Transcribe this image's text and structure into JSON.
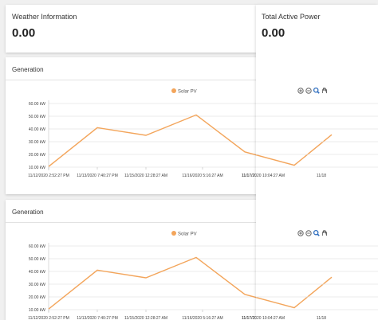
{
  "widgets": {
    "weather": {
      "title": "Weather Information",
      "value": "0.00"
    },
    "active_power": {
      "title": "Total Active Power",
      "value": "0.00"
    }
  },
  "panels": [
    {
      "title": "Generation",
      "toolbar": [
        "zoom-in-icon",
        "zoom-out-icon",
        "magnify-icon",
        "pan-hand-icon"
      ],
      "chart_data": {
        "type": "line",
        "title": "",
        "series": [
          {
            "name": "Solar PV",
            "color": "#f3a55b",
            "values": [
              10.5,
              41.0,
              35.0,
              51.0,
              22.0,
              11.5,
              35.5
            ]
          }
        ],
        "x_tick_labels": [
          "11/12/2020 2:52:27 PM",
          "11/13/2020 7:40:27 PM",
          "11/15/2020 12:28:27 AM",
          "11/16/2020 5:16:27 AM",
          "11/17/2020 10:04:27 AM",
          "11/18"
        ],
        "y_tick_labels": [
          "10.00 kW",
          "20.00 kW",
          "30.00 kW",
          "40.00 kW",
          "50.00 kW",
          "60.00 kW"
        ],
        "ylim": [
          10,
          60
        ],
        "grid": true,
        "legend": "top-center"
      }
    },
    {
      "title": "Generation",
      "toolbar": [
        "zoom-in-icon",
        "zoom-out-icon",
        "magnify-icon",
        "pan-hand-icon"
      ],
      "chart_data": {
        "type": "line",
        "title": "",
        "series": [
          {
            "name": "Solar PV",
            "color": "#f3a55b",
            "values": [
              10.5,
              41.0,
              35.0,
              51.0,
              22.0,
              11.5,
              35.5
            ]
          }
        ],
        "x_tick_labels": [
          "11/12/2020 2:52:27 PM",
          "11/13/2020 7:40:27 PM",
          "11/15/2020 12:28:27 AM",
          "11/16/2020 5:16:27 AM",
          "11/17/2020 10:04:27 AM",
          "11/18"
        ],
        "y_tick_labels": [
          "10.00 kW",
          "20.00 kW",
          "30.00 kW",
          "40.00 kW",
          "50.00 kW",
          "60.00 kW"
        ],
        "ylim": [
          10,
          60
        ],
        "grid": true,
        "legend": "top-center"
      }
    }
  ]
}
